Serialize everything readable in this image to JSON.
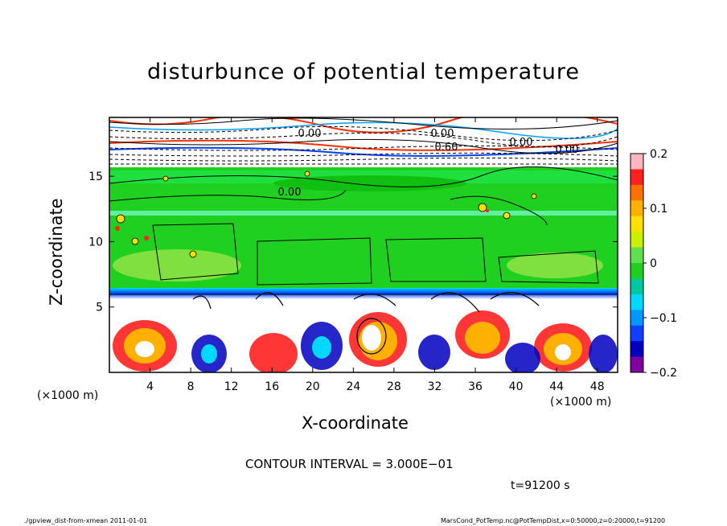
{
  "chart_data": {
    "type": "heatmap",
    "title": "disturbunce of potential temperature",
    "xlabel": "X-coordinate",
    "ylabel": "Z-coordinate",
    "x_unit_left": "(×1000 m)",
    "x_unit_right": "(×1000 m)",
    "xlim": [
      0,
      50
    ],
    "ylim": [
      0,
      19.5
    ],
    "x_ticks": [
      4,
      8,
      12,
      16,
      20,
      24,
      28,
      32,
      36,
      40,
      44,
      48
    ],
    "y_ticks": [
      5,
      10,
      15
    ],
    "colorbar": {
      "range": [
        -0.2,
        0.2
      ],
      "ticks": [
        0.2,
        0.1,
        0,
        -0.1,
        -0.2
      ],
      "tick_labels": [
        "0.2",
        "0.1",
        "0",
        "−0.1",
        "−0.2"
      ],
      "colors": [
        "#ffb6c1",
        "#ff2020",
        "#ff7000",
        "#ffb000",
        "#ffe000",
        "#c8f000",
        "#60e050",
        "#20d020",
        "#00c8a0",
        "#00d8ff",
        "#0098ff",
        "#1040ff",
        "#0000c0",
        "#8000a0"
      ]
    },
    "contour_labels": [
      "0.00",
      "0.00",
      "0.00",
      "0.60",
      "0.00",
      "0.00"
    ],
    "contour_interval_text": "CONTOUR INTERVAL = 3.000E−01"
  },
  "time_label": "t=91200 s",
  "footer": {
    "left": "./gpview_dist-from-xmean  2011-01-01",
    "right": "MarsCond_PotTemp.nc@PotTempDist,x=0:50000,z=0:20000,t=91200"
  }
}
